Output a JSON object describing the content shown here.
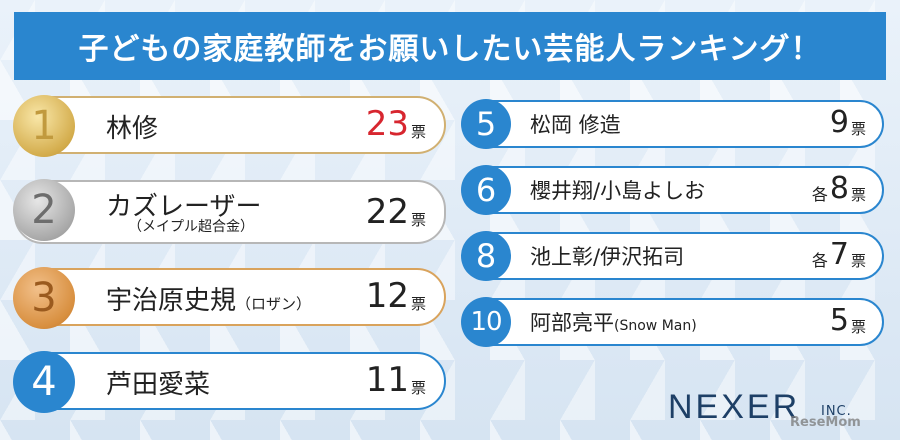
{
  "banner": {
    "title": "子どもの家庭教師をお願いしたい芸能人ランキング！"
  },
  "left_ranks": [
    {
      "rank": "1",
      "name": "林修",
      "votes": "23",
      "unit": "票",
      "medal": "gold",
      "vote_color": "#d7262f"
    },
    {
      "rank": "2",
      "name": "カズレーザー",
      "subname": "（メイプル超合金）",
      "votes": "22",
      "unit": "票",
      "medal": "silver"
    },
    {
      "rank": "3",
      "name": "宇治原史規",
      "suffix": "（ロザン）",
      "votes": "12",
      "unit": "票",
      "medal": "bronze"
    },
    {
      "rank": "4",
      "name": "芦田愛菜",
      "votes": "11",
      "unit": "票",
      "medal": "plain"
    }
  ],
  "right_ranks": [
    {
      "rank": "5",
      "name": "松岡 修造",
      "votes": "9",
      "unit": "票"
    },
    {
      "rank": "6",
      "name": "櫻井翔/小島よしお",
      "each": "各",
      "votes": "8",
      "unit": "票"
    },
    {
      "rank": "8",
      "name": "池上彰/伊沢拓司",
      "each": "各",
      "votes": "7",
      "unit": "票"
    },
    {
      "rank": "10",
      "name": "阿部亮平",
      "suffix": "(Snow Man)",
      "votes": "5",
      "unit": "票"
    }
  ],
  "logo": {
    "text": "NEXER",
    "sub": "INC."
  },
  "watermark": "ReseMom",
  "colors": {
    "banner_blue": "#2a86cf",
    "gold": "#d4ad4d",
    "silver": "#a9a9a9",
    "bronze": "#d88f3f",
    "highlight_red": "#d7262f"
  }
}
